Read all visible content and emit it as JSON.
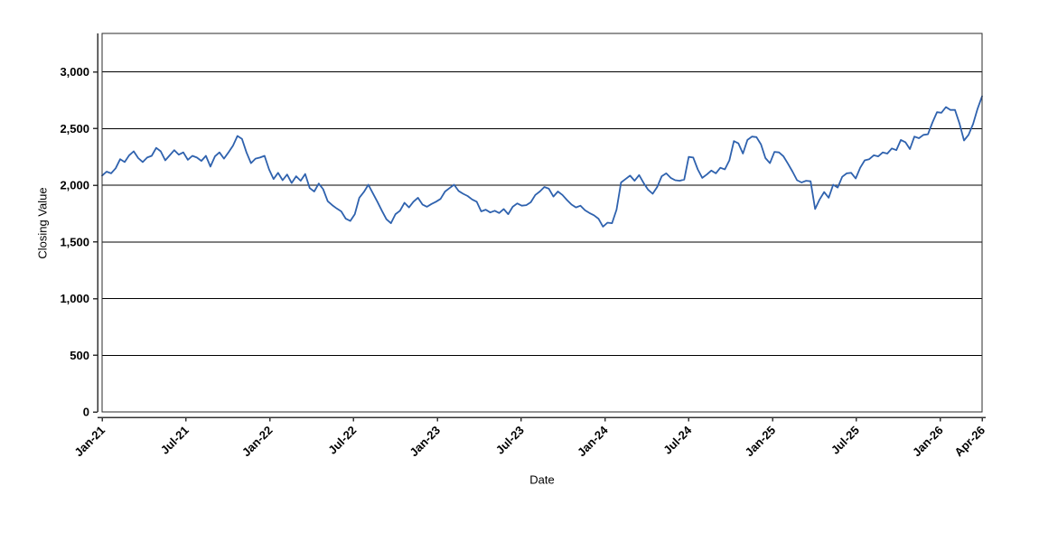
{
  "chart_data": {
    "type": "line",
    "title": "",
    "xlabel": "Date",
    "ylabel": "Closing Value",
    "x_range": [
      "Jan-2021",
      "Apr-2026"
    ],
    "ylim": [
      0,
      3340
    ],
    "grid": "horizontal-black-lines-at-500-intervals",
    "legend": "none",
    "y_ticks": [
      {
        "value": 0,
        "label": "0"
      },
      {
        "value": 500,
        "label": "500"
      },
      {
        "value": 1000,
        "label": "1,000"
      },
      {
        "value": 1500,
        "label": "1,500"
      },
      {
        "value": 2000,
        "label": "2,000"
      },
      {
        "value": 2500,
        "label": "2,500"
      },
      {
        "value": 3000,
        "label": "3,000"
      }
    ],
    "x_ticks": [
      {
        "label": "Jan-21",
        "month_offset": 0
      },
      {
        "label": "Jul-21",
        "month_offset": 6
      },
      {
        "label": "Jan-22",
        "month_offset": 12
      },
      {
        "label": "Jul-22",
        "month_offset": 18
      },
      {
        "label": "Jan-23",
        "month_offset": 24
      },
      {
        "label": "Jul-23",
        "month_offset": 30
      },
      {
        "label": "Jan-24",
        "month_offset": 36
      },
      {
        "label": "Jul-24",
        "month_offset": 42
      },
      {
        "label": "Jan-25",
        "month_offset": 48
      },
      {
        "label": "Jul-25",
        "month_offset": 54
      },
      {
        "label": "Jan-26",
        "month_offset": 60
      },
      {
        "label": "Apr-26",
        "month_offset": 63
      }
    ],
    "series": [
      {
        "name": "Closing Value",
        "color": "#2f62ae",
        "sampling": "196 points evenly spaced in time, Jan-2021 through Apr-2026 (~weekly)",
        "values": [
          2085,
          2120,
          2105,
          2150,
          2230,
          2205,
          2265,
          2300,
          2240,
          2205,
          2245,
          2260,
          2330,
          2300,
          2220,
          2265,
          2310,
          2270,
          2290,
          2225,
          2260,
          2245,
          2215,
          2260,
          2165,
          2255,
          2290,
          2235,
          2290,
          2350,
          2435,
          2410,
          2290,
          2195,
          2235,
          2245,
          2260,
          2140,
          2055,
          2110,
          2045,
          2095,
          2020,
          2080,
          2040,
          2100,
          1975,
          1945,
          2015,
          1965,
          1860,
          1825,
          1795,
          1770,
          1705,
          1685,
          1745,
          1890,
          1940,
          2005,
          1930,
          1855,
          1775,
          1700,
          1665,
          1745,
          1775,
          1845,
          1805,
          1855,
          1890,
          1830,
          1810,
          1835,
          1855,
          1880,
          1945,
          1975,
          2005,
          1950,
          1925,
          1905,
          1875,
          1855,
          1770,
          1785,
          1760,
          1775,
          1755,
          1790,
          1745,
          1810,
          1840,
          1820,
          1825,
          1850,
          1915,
          1945,
          1985,
          1970,
          1900,
          1945,
          1915,
          1870,
          1830,
          1805,
          1820,
          1780,
          1755,
          1735,
          1705,
          1635,
          1670,
          1665,
          1785,
          2025,
          2055,
          2085,
          2040,
          2090,
          2020,
          1960,
          1925,
          1985,
          2080,
          2105,
          2065,
          2045,
          2040,
          2050,
          2250,
          2245,
          2140,
          2065,
          2095,
          2130,
          2105,
          2155,
          2140,
          2220,
          2390,
          2370,
          2280,
          2400,
          2430,
          2425,
          2360,
          2240,
          2195,
          2295,
          2290,
          2255,
          2190,
          2120,
          2045,
          2025,
          2040,
          2035,
          1790,
          1875,
          1940,
          1890,
          2005,
          1980,
          2075,
          2105,
          2110,
          2060,
          2155,
          2220,
          2230,
          2265,
          2255,
          2290,
          2280,
          2325,
          2310,
          2400,
          2380,
          2320,
          2430,
          2415,
          2445,
          2450,
          2555,
          2645,
          2640,
          2690,
          2665,
          2665,
          2545,
          2395,
          2445,
          2540,
          2675,
          2785
        ]
      }
    ]
  },
  "colors": {
    "background": "#ffffff",
    "line": "#2f62ae",
    "grid": "#000000",
    "axis": "#333333",
    "plot_border": "#2b2b2b",
    "text": "#000000"
  }
}
